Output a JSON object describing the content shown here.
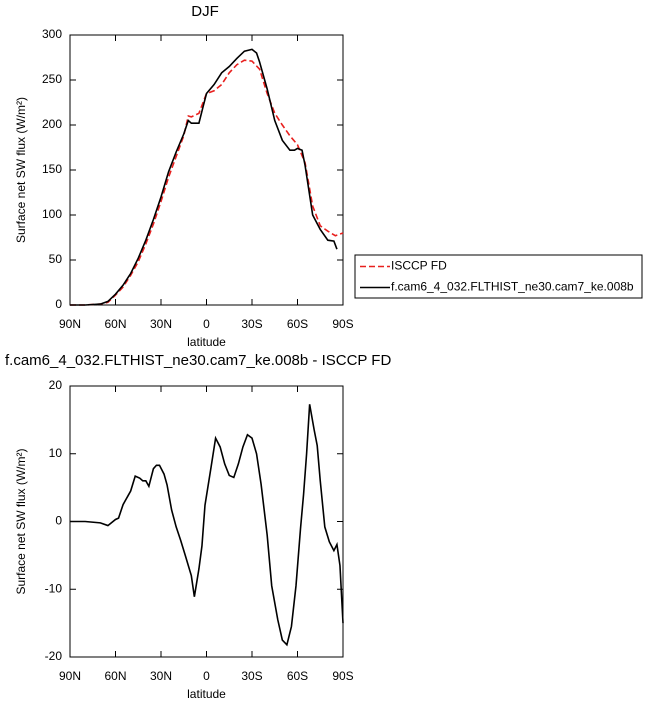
{
  "chart_data": [
    {
      "type": "line",
      "title": "DJF",
      "xlabel": "latitude",
      "ylabel": "Surface net SW flux (W/m²)",
      "xlim": [
        90,
        -90
      ],
      "xticks": [
        {
          "value": 90,
          "label": "90N"
        },
        {
          "value": 60,
          "label": "60N"
        },
        {
          "value": 30,
          "label": "30N"
        },
        0,
        {
          "value": -30,
          "label": "30S"
        },
        {
          "value": -60,
          "label": "60S"
        },
        {
          "value": -90,
          "label": "90S"
        }
      ],
      "ylim": [
        0,
        300
      ],
      "yticks": [
        0,
        50,
        100,
        150,
        200,
        250,
        300
      ],
      "legend": "outside right",
      "series": [
        {
          "name": "ISCCP FD",
          "color": "#e8201e",
          "linestyle": "dashed",
          "x": [
            90,
            80,
            70,
            65,
            60,
            55,
            50,
            45,
            40,
            35,
            30,
            25,
            20,
            15,
            12,
            10,
            5,
            0,
            -5,
            -10,
            -15,
            -20,
            -25,
            -30,
            -35,
            -40,
            -45,
            -50,
            -55,
            -60,
            -65,
            -70,
            -75,
            -80,
            -85,
            -90
          ],
          "values": [
            0,
            0,
            1,
            3,
            11,
            20,
            33,
            48,
            68,
            90,
            115,
            142,
            165,
            188,
            210,
            209,
            213,
            235,
            238,
            245,
            258,
            267,
            272,
            271,
            262,
            235,
            213,
            200,
            188,
            178,
            158,
            110,
            88,
            82,
            77,
            80
          ]
        },
        {
          "name": "f.cam6_4_032.FLTHIST_ne30.cam7_ke.008b",
          "color": "#000000",
          "linestyle": "solid",
          "x": [
            90,
            80,
            70,
            65,
            60,
            55,
            50,
            45,
            40,
            35,
            30,
            25,
            20,
            15,
            12,
            10,
            5,
            2,
            0,
            -5,
            -10,
            -15,
            -20,
            -25,
            -30,
            -33,
            -35,
            -40,
            -45,
            -50,
            -55,
            -58,
            -60,
            -63,
            -65,
            -70,
            -75,
            -80,
            -84,
            -86
          ],
          "values": [
            0,
            0,
            1,
            4,
            12,
            22,
            35,
            52,
            72,
            95,
            120,
            148,
            170,
            190,
            205,
            202,
            202,
            222,
            235,
            245,
            258,
            265,
            274,
            282,
            284,
            280,
            270,
            240,
            205,
            183,
            172,
            172,
            174,
            172,
            155,
            100,
            84,
            72,
            71,
            62
          ]
        }
      ]
    },
    {
      "type": "line",
      "title": "f.cam6_4_032.FLTHIST_ne30.cam7_ke.008b - ISCCP FD",
      "xlabel": "latitude",
      "ylabel": "Surface net SW flux (W/m²)",
      "xlim": [
        90,
        -90
      ],
      "xticks": [
        {
          "value": 90,
          "label": "90N"
        },
        {
          "value": 60,
          "label": "60N"
        },
        {
          "value": 30,
          "label": "30N"
        },
        0,
        {
          "value": -30,
          "label": "30S"
        },
        {
          "value": -60,
          "label": "60S"
        },
        {
          "value": -90,
          "label": "90S"
        }
      ],
      "ylim": [
        -20,
        20
      ],
      "yticks": [
        -20,
        -10,
        0,
        10,
        20
      ],
      "series": [
        {
          "color": "#000000",
          "linestyle": "solid",
          "x": [
            90,
            80,
            70,
            65,
            60,
            58,
            55,
            50,
            47,
            44,
            42,
            40,
            38,
            35,
            33,
            31,
            28,
            26,
            23,
            20,
            17,
            14,
            10,
            8,
            5,
            3,
            1,
            -3,
            -6,
            -9,
            -12,
            -15,
            -18,
            -21,
            -24,
            -27,
            -30,
            -33,
            -36,
            -40,
            -43,
            -47,
            -50,
            -53,
            -56,
            -59,
            -62,
            -64,
            -66,
            -68,
            -71,
            -73,
            -75,
            -78,
            -81,
            -84,
            -86,
            -88,
            -90
          ],
          "values": [
            0,
            0,
            -0.2,
            -0.6,
            0.3,
            0.5,
            2.5,
            4.5,
            6.7,
            6.4,
            6,
            6,
            5.2,
            7.8,
            8.3,
            8.3,
            7,
            5.4,
            1.7,
            -0.8,
            -2.8,
            -5,
            -8,
            -11.1,
            -7,
            -3.6,
            2.4,
            8,
            12.3,
            11,
            8.5,
            6.8,
            6.5,
            8.5,
            11,
            12.8,
            12.3,
            10,
            5.5,
            -2,
            -9.5,
            -14.5,
            -17.5,
            -18.2,
            -15.5,
            -9.5,
            -1,
            4,
            10,
            17.3,
            13.5,
            11.2,
            6,
            -0.8,
            -3,
            -4.3,
            -3.4,
            -6.5,
            -15
          ]
        }
      ]
    }
  ]
}
